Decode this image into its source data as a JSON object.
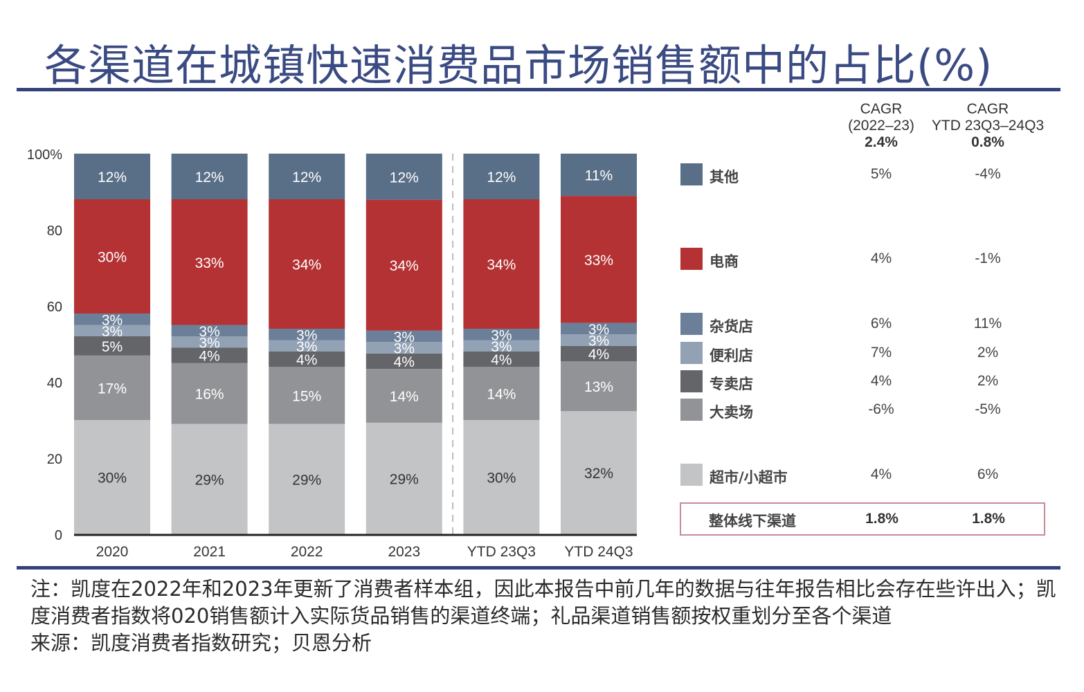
{
  "title": "各渠道在城镇快速消费品市场销售额中的占比(%)",
  "chart_data": {
    "type": "bar",
    "stacked": true,
    "title": "各渠道在城镇快速消费品市场销售额中的占比(%)",
    "xlabel": "",
    "ylabel": "",
    "ylim": [
      0,
      100
    ],
    "yticks": [
      "0",
      "20",
      "40",
      "60",
      "80",
      "100%"
    ],
    "ytick_values": [
      0,
      20,
      40,
      60,
      80,
      100
    ],
    "categories": [
      "2020",
      "2021",
      "2022",
      "2023",
      "YTD 23Q3",
      "YTD 24Q3"
    ],
    "divider_after_category": "2023",
    "series": [
      {
        "name": "超市/小超市",
        "color": "#c3c4c6",
        "label_color": "#333333",
        "values": [
          30,
          29,
          29,
          29,
          30,
          32
        ]
      },
      {
        "name": "大卖场",
        "color": "#929396",
        "label_color": "#ffffff",
        "values": [
          17,
          16,
          15,
          14,
          14,
          13
        ]
      },
      {
        "name": "专卖店",
        "color": "#646569",
        "label_color": "#ffffff",
        "values": [
          5,
          4,
          4,
          4,
          4,
          4
        ]
      },
      {
        "name": "便利店",
        "color": "#92a1b4",
        "label_color": "#ffffff",
        "values": [
          3,
          3,
          3,
          3,
          3,
          3
        ]
      },
      {
        "name": "杂货店",
        "color": "#6c7f98",
        "label_color": "#ffffff",
        "values": [
          3,
          3,
          3,
          3,
          3,
          3
        ]
      },
      {
        "name": "电商",
        "color": "#b53234",
        "label_color": "#ffffff",
        "values": [
          30,
          33,
          34,
          34,
          34,
          33
        ]
      },
      {
        "name": "其他",
        "color": "#596f88",
        "label_color": "#ffffff",
        "values": [
          12,
          12,
          12,
          12,
          12,
          11
        ]
      }
    ]
  },
  "cagr_table": {
    "col1_header_line1": "CAGR",
    "col1_header_line2": "(2022–23)",
    "col1_total": "2.4%",
    "col2_header_line1": "CAGR",
    "col2_header_line2": "YTD 23Q3–24Q3",
    "col2_total": "0.8%",
    "rows": [
      {
        "name": "其他",
        "color": "#596f88",
        "cagr_2022_23": "5%",
        "cagr_ytd": "-4%"
      },
      {
        "name": "电商",
        "color": "#b53234",
        "cagr_2022_23": "4%",
        "cagr_ytd": "-1%"
      },
      {
        "name": "杂货店",
        "color": "#6c7f98",
        "cagr_2022_23": "6%",
        "cagr_ytd": "11%"
      },
      {
        "name": "便利店",
        "color": "#92a1b4",
        "cagr_2022_23": "7%",
        "cagr_ytd": "2%"
      },
      {
        "name": "专卖店",
        "color": "#646569",
        "cagr_2022_23": "4%",
        "cagr_ytd": "2%"
      },
      {
        "name": "大卖场",
        "color": "#929396",
        "cagr_2022_23": "-6%",
        "cagr_ytd": "-5%"
      },
      {
        "name": "超市/小超市",
        "color": "#c3c4c6",
        "cagr_2022_23": "4%",
        "cagr_ytd": "6%"
      }
    ],
    "total": {
      "name": "整体线下渠道",
      "cagr_2022_23": "1.8%",
      "cagr_ytd": "1.8%"
    }
  },
  "notes": {
    "note": "注：凯度在2022年和2023年更新了消费者样本组，因此本报告中前几年的数据与往年报告相比会存在些许出入；凯度消费者指数将020销售额计入实际货品销售的渠道终端；礼品渠道销售额按权重划分至各个渠道",
    "source": "来源：凯度消费者指数研究；贝恩分析"
  },
  "colors": {
    "title": "#3a4a82",
    "rule": "#34427a",
    "total_box_border": "#c98a94"
  }
}
